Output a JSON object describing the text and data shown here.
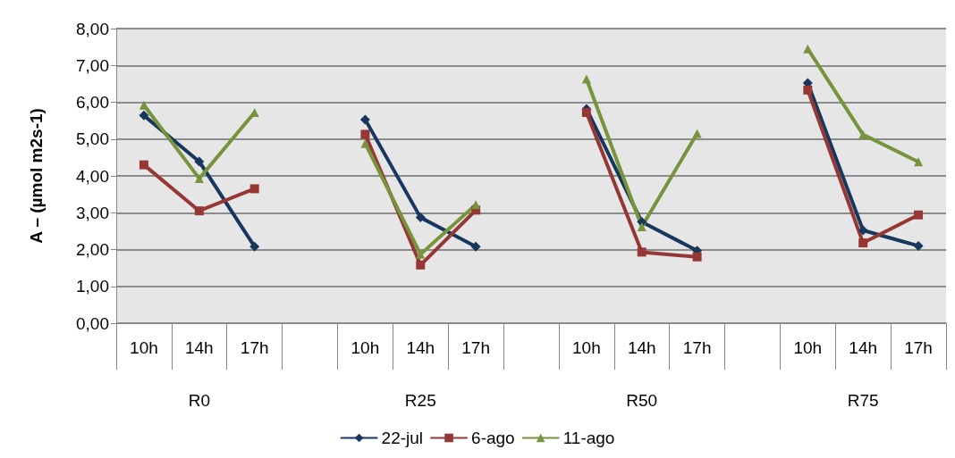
{
  "chart_data": {
    "type": "line",
    "ylabel": "A – (µmol m2s-1)",
    "categories": [
      "10h",
      "14h",
      "17h",
      null,
      "10h",
      "14h",
      "17h",
      null,
      "10h",
      "14h",
      "17h",
      null,
      "10h",
      "14h",
      "17h"
    ],
    "annotations": [
      "R0",
      "R25",
      "R50",
      "R75"
    ],
    "series": [
      {
        "name": "22-jul",
        "color": "#17375e",
        "marker": "diamond",
        "values": [
          5.64,
          4.39,
          2.08,
          null,
          5.53,
          2.87,
          2.08,
          null,
          5.82,
          2.75,
          1.97,
          null,
          6.52,
          2.52,
          2.1
        ]
      },
      {
        "name": "6-ago",
        "color": "#953735",
        "marker": "square",
        "values": [
          4.3,
          3.05,
          3.65,
          null,
          5.13,
          1.58,
          3.07,
          null,
          5.72,
          1.93,
          1.8,
          null,
          6.33,
          2.18,
          2.94
        ]
      },
      {
        "name": "11-ago",
        "color": "#77933c",
        "marker": "triangle",
        "values": [
          5.92,
          3.93,
          5.72,
          null,
          4.88,
          1.87,
          3.22,
          null,
          6.63,
          2.62,
          5.15,
          null,
          7.45,
          5.12,
          4.38
        ]
      }
    ],
    "ylim": [
      0,
      8
    ],
    "yticks": [
      {
        "value": 0,
        "label": "0,00"
      },
      {
        "value": 1,
        "label": "1,00"
      },
      {
        "value": 2,
        "label": "2,00"
      },
      {
        "value": 3,
        "label": "3,00"
      },
      {
        "value": 4,
        "label": "4,00"
      },
      {
        "value": 5,
        "label": "5,00"
      },
      {
        "value": 6,
        "label": "6,00"
      },
      {
        "value": 7,
        "label": "7,00"
      },
      {
        "value": 8,
        "label": "8,00"
      }
    ],
    "grid": "y",
    "legend": "bottom"
  }
}
